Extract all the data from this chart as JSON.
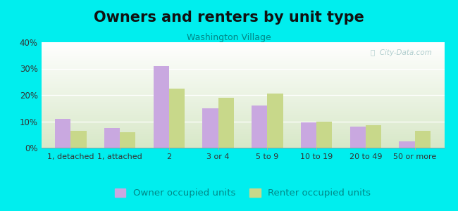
{
  "title": "Owners and renters by unit type",
  "subtitle": "Washington Village",
  "categories": [
    "1, detached",
    "1, attached",
    "2",
    "3 or 4",
    "5 to 9",
    "10 to 19",
    "20 to 49",
    "50 or more"
  ],
  "owner_values": [
    11,
    7.5,
    31,
    15,
    16,
    9.5,
    8,
    2.5
  ],
  "renter_values": [
    6.5,
    6,
    22.5,
    19,
    20.5,
    10,
    8.5,
    6.5
  ],
  "owner_color": "#c9a8e0",
  "renter_color": "#c8d88a",
  "background_color": "#00eeee",
  "plot_bg_top": "#ffffff",
  "plot_bg_bottom": "#d8e8c8",
  "ylim": [
    0,
    40
  ],
  "yticks": [
    0,
    10,
    20,
    30,
    40
  ],
  "ytick_labels": [
    "0%",
    "10%",
    "20%",
    "30%",
    "40%"
  ],
  "title_fontsize": 15,
  "subtitle_fontsize": 9,
  "legend_fontsize": 9.5,
  "bar_width": 0.32,
  "owner_label": "Owner occupied units",
  "renter_label": "Renter occupied units",
  "subtitle_color": "#008888",
  "title_color": "#111111",
  "watermark_color": "#b0cece",
  "grid_color": "#ffffff",
  "tick_label_color": "#333333"
}
